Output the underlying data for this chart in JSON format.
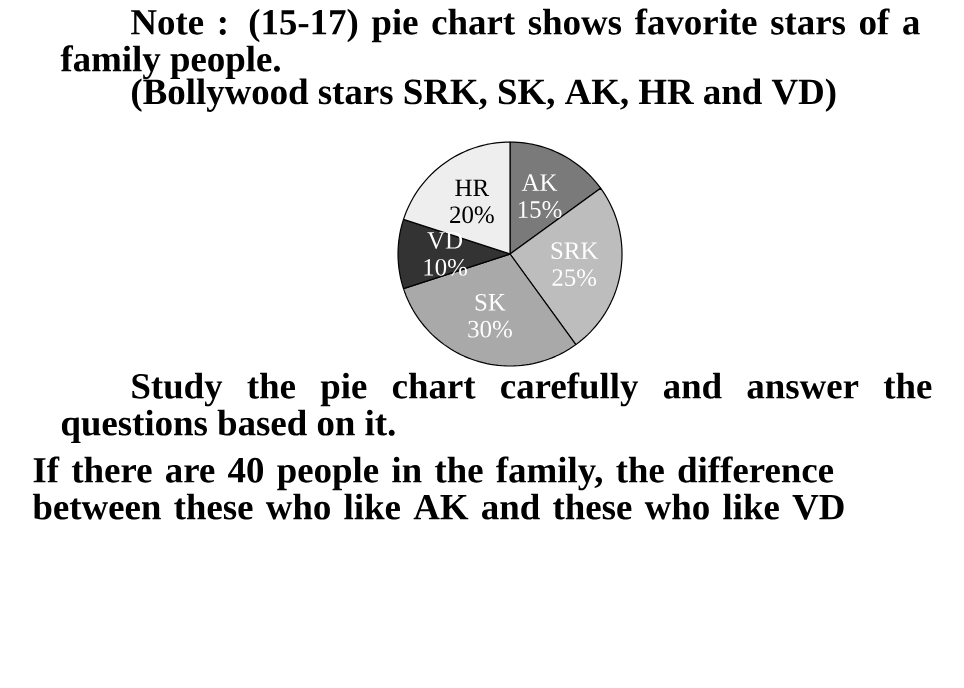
{
  "chart_data": {
    "type": "pie",
    "title": "Note : (15-17) pie chart shows favorite stars of a family people.",
    "subtitle": "(Bollywood stars SRK, SK, AK, HR and VD)",
    "categories": [
      "AK",
      "SRK",
      "SK",
      "VD",
      "HR"
    ],
    "values": [
      15,
      25,
      30,
      10,
      20
    ],
    "value_labels": [
      "15%",
      "25%",
      "30%",
      "10%",
      "20%"
    ],
    "colors": [
      "#7a7a7a",
      "#bdbdbd",
      "#a9a9a9",
      "#333333",
      "#eeeeee"
    ],
    "annotations": [
      "Study the pie chart carefully and answer the questions based on it.",
      "If there are 40 people in the family, the difference between these who like AK and these who like VD"
    ]
  }
}
